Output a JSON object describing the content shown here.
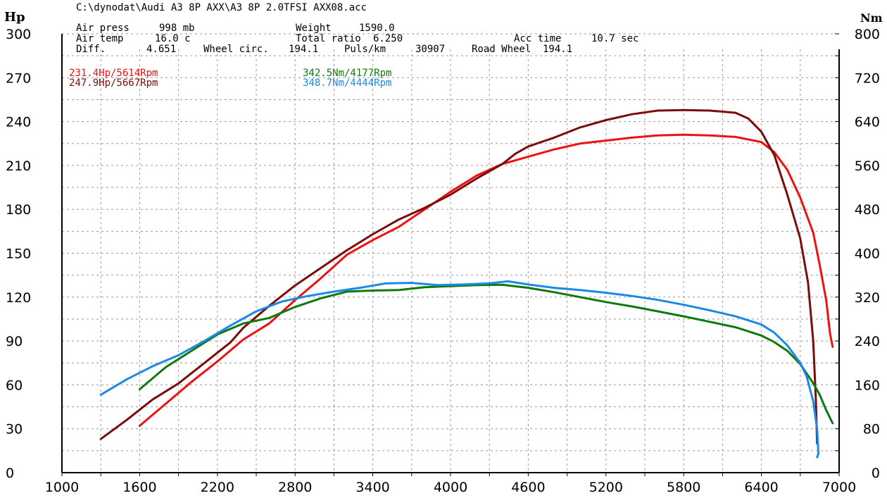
{
  "file_path": "C:\\dynodat\\Audi A3 8P AXX\\A3 8P 2.0TFSI AXX08.acc",
  "info": {
    "air_press_label": "Air press",
    "air_press_value": "998 mb",
    "air_temp_label": "Air temp",
    "air_temp_value": "16.0 c",
    "diff_label": "Diff.",
    "diff_value": "4.651",
    "weight_label": "Weight",
    "weight_value": "1590.0",
    "total_ratio_label": "Total ratio",
    "total_ratio_value": "6.250",
    "wheel_circ_label": "Wheel circ.",
    "wheel_circ_value": "194.1",
    "puls_label": "Puls/km",
    "puls_value": "30907",
    "road_wheel_label": "Road Wheel",
    "road_wheel_value": "194.1",
    "acc_time_label": "Acc time",
    "acc_time_value": "10.7 sec"
  },
  "legend": {
    "hp1": "231.4Hp/5614Rpm",
    "hp2": "247.9Hp/5667Rpm",
    "nm1": "342.5Nm/4177Rpm",
    "nm2": "348.7Nm/4444Rpm"
  },
  "colors": {
    "red": "#ee1111",
    "darkred": "#7a0c0c",
    "green": "#0e7a0e",
    "blue": "#1a8ae6"
  },
  "chart_data": {
    "type": "line",
    "xlabel": "",
    "y_left_unit": "Hp",
    "y_right_unit": "Nm",
    "xlim": [
      1000,
      7000
    ],
    "ylim_left": [
      0,
      300
    ],
    "ylim_right": [
      0,
      800
    ],
    "x_ticks": [
      1000,
      1600,
      2200,
      2800,
      3400,
      4000,
      4600,
      5200,
      5800,
      6400,
      7000
    ],
    "y_left_ticks": [
      0,
      30,
      60,
      90,
      120,
      150,
      180,
      210,
      240,
      270,
      300
    ],
    "y_right_ticks": [
      0,
      80,
      160,
      240,
      320,
      400,
      480,
      560,
      640,
      720,
      800
    ],
    "grid": true,
    "series": [
      {
        "name": "231.4Hp/5614Rpm",
        "axis": "left",
        "color": "red",
        "points": [
          [
            1600,
            32
          ],
          [
            1800,
            47
          ],
          [
            2000,
            62
          ],
          [
            2200,
            76
          ],
          [
            2400,
            91
          ],
          [
            2600,
            102
          ],
          [
            2800,
            118
          ],
          [
            3000,
            133
          ],
          [
            3200,
            149
          ],
          [
            3400,
            159
          ],
          [
            3600,
            168
          ],
          [
            3800,
            180
          ],
          [
            4000,
            192
          ],
          [
            4200,
            203
          ],
          [
            4400,
            211
          ],
          [
            4600,
            216
          ],
          [
            4800,
            221
          ],
          [
            5000,
            225
          ],
          [
            5200,
            227
          ],
          [
            5400,
            229
          ],
          [
            5600,
            230.5
          ],
          [
            5800,
            231
          ],
          [
            6000,
            230.5
          ],
          [
            6200,
            229.5
          ],
          [
            6400,
            226
          ],
          [
            6500,
            219
          ],
          [
            6600,
            207
          ],
          [
            6700,
            188
          ],
          [
            6800,
            164
          ],
          [
            6850,
            142
          ],
          [
            6900,
            118
          ],
          [
            6930,
            95
          ],
          [
            6950,
            86
          ]
        ]
      },
      {
        "name": "247.9Hp/5667Rpm",
        "axis": "left",
        "color": "darkred",
        "points": [
          [
            1300,
            23
          ],
          [
            1500,
            36
          ],
          [
            1700,
            50
          ],
          [
            1900,
            61
          ],
          [
            2100,
            75
          ],
          [
            2300,
            89
          ],
          [
            2400,
            99
          ],
          [
            2600,
            114
          ],
          [
            2800,
            128
          ],
          [
            3000,
            140
          ],
          [
            3200,
            152
          ],
          [
            3400,
            163
          ],
          [
            3600,
            173
          ],
          [
            3800,
            181
          ],
          [
            4000,
            190
          ],
          [
            4200,
            201
          ],
          [
            4400,
            211
          ],
          [
            4500,
            218
          ],
          [
            4600,
            223
          ],
          [
            4800,
            229
          ],
          [
            5000,
            236
          ],
          [
            5200,
            241
          ],
          [
            5400,
            245
          ],
          [
            5600,
            247.5
          ],
          [
            5800,
            247.9
          ],
          [
            6000,
            247.5
          ],
          [
            6200,
            246
          ],
          [
            6300,
            242
          ],
          [
            6400,
            233
          ],
          [
            6500,
            217
          ],
          [
            6600,
            190
          ],
          [
            6700,
            160
          ],
          [
            6760,
            130
          ],
          [
            6800,
            90
          ],
          [
            6820,
            50
          ],
          [
            6830,
            20
          ]
        ]
      },
      {
        "name": "342.5Nm/4177Rpm",
        "axis": "right",
        "color": "green",
        "points": [
          [
            1600,
            152
          ],
          [
            1800,
            192
          ],
          [
            2000,
            222
          ],
          [
            2200,
            252
          ],
          [
            2400,
            272
          ],
          [
            2600,
            282
          ],
          [
            2800,
            302
          ],
          [
            3000,
            318
          ],
          [
            3200,
            330
          ],
          [
            3400,
            332
          ],
          [
            3600,
            333
          ],
          [
            3800,
            338
          ],
          [
            4000,
            340
          ],
          [
            4200,
            342
          ],
          [
            4400,
            342.5
          ],
          [
            4600,
            337
          ],
          [
            4800,
            329
          ],
          [
            5000,
            320
          ],
          [
            5200,
            311
          ],
          [
            5400,
            303
          ],
          [
            5600,
            294
          ],
          [
            5800,
            285
          ],
          [
            6000,
            275
          ],
          [
            6200,
            265
          ],
          [
            6400,
            250
          ],
          [
            6500,
            238
          ],
          [
            6600,
            222
          ],
          [
            6700,
            198
          ],
          [
            6800,
            163
          ],
          [
            6850,
            142
          ],
          [
            6900,
            114
          ],
          [
            6950,
            90
          ]
        ]
      },
      {
        "name": "348.7Nm/4444Rpm",
        "axis": "right",
        "color": "blue",
        "points": [
          [
            1300,
            142
          ],
          [
            1500,
            170
          ],
          [
            1700,
            194
          ],
          [
            1900,
            214
          ],
          [
            2100,
            240
          ],
          [
            2300,
            268
          ],
          [
            2500,
            294
          ],
          [
            2700,
            312
          ],
          [
            2900,
            322
          ],
          [
            3100,
            330
          ],
          [
            3300,
            337
          ],
          [
            3500,
            345
          ],
          [
            3700,
            346
          ],
          [
            3900,
            342
          ],
          [
            4100,
            343
          ],
          [
            4300,
            345
          ],
          [
            4444,
            348.7
          ],
          [
            4600,
            343
          ],
          [
            4800,
            337
          ],
          [
            5000,
            333
          ],
          [
            5200,
            328
          ],
          [
            5400,
            322
          ],
          [
            5600,
            315
          ],
          [
            5800,
            306
          ],
          [
            6000,
            296
          ],
          [
            6200,
            285
          ],
          [
            6400,
            270
          ],
          [
            6500,
            255
          ],
          [
            6600,
            232
          ],
          [
            6700,
            200
          ],
          [
            6750,
            175
          ],
          [
            6800,
            130
          ],
          [
            6830,
            80
          ],
          [
            6840,
            35
          ],
          [
            6830,
            28
          ]
        ]
      }
    ]
  }
}
